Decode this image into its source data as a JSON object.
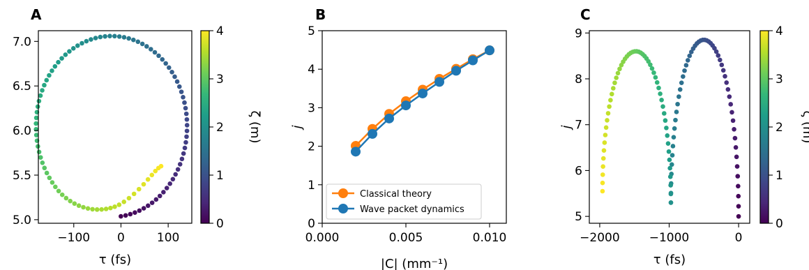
{
  "colorscale": [
    "#440154",
    "#482878",
    "#3e4989",
    "#31688e",
    "#26828e",
    "#1f9e89",
    "#35b779",
    "#6ece58",
    "#b5de2b",
    "#fde725"
  ],
  "series_colors": {
    "classical": "#ff7f0e",
    "wave": "#1f77b4"
  },
  "chart_data": [
    {
      "type": "scatter",
      "panel": "A",
      "xlabel": "τ (fs)",
      "ylabel": "",
      "xlim": [
        -175,
        150
      ],
      "ylim": [
        4.96,
        7.12
      ],
      "xticks": [
        -100,
        0,
        100
      ],
      "xtick_labels": [
        "−100",
        "0",
        "100"
      ],
      "yticks": [
        5.0,
        5.5,
        6.0,
        6.5,
        7.0
      ],
      "ytick_labels": [
        "5.0",
        "5.5",
        "6.0",
        "6.5",
        "7.0"
      ],
      "curve": {
        "form": "ellipse-spiral",
        "center": [
          -20,
          6.05
        ],
        "radius_x": 160,
        "radius_y_top": 1.01,
        "radius_y_bottom": 1.02,
        "start": [
          0,
          5.0
        ],
        "end": [
          85,
          5.6
        ],
        "points": 110
      },
      "colorbar": {
        "label": "ζ (m)",
        "range": [
          0,
          4
        ],
        "ticks": [
          0,
          1,
          2,
          3,
          4
        ],
        "tick_labels": [
          "0",
          "1",
          "2",
          "3",
          "4"
        ]
      },
      "grid": false
    },
    {
      "type": "line",
      "panel": "B",
      "xlabel": "|C| (mm⁻¹)",
      "ylabel": "j",
      "xlim": [
        0.0,
        0.011
      ],
      "ylim": [
        0,
        5
      ],
      "xticks": [
        0.0,
        0.005,
        0.01
      ],
      "xtick_labels": [
        "0.000",
        "0.005",
        "0.010"
      ],
      "yticks": [
        0,
        1,
        2,
        3,
        4,
        5
      ],
      "ytick_labels": [
        "0",
        "1",
        "2",
        "3",
        "4",
        "5"
      ],
      "x": [
        0.002,
        0.003,
        0.004,
        0.005,
        0.006,
        0.007,
        0.008,
        0.009,
        0.01
      ],
      "series": [
        {
          "name": "Classical theory",
          "values": [
            2.01,
            2.45,
            2.84,
            3.17,
            3.47,
            3.75,
            4.01,
            4.26,
            4.49
          ]
        },
        {
          "name": "Wave packet dynamics",
          "values": [
            1.86,
            2.32,
            2.72,
            3.06,
            3.37,
            3.67,
            3.96,
            4.23,
            4.49
          ]
        }
      ],
      "legend": "lower-right",
      "grid": false
    },
    {
      "type": "scatter",
      "panel": "C",
      "xlabel": "τ (fs)",
      "ylabel": "j",
      "xlim": [
        -2150,
        160
      ],
      "ylim": [
        4.85,
        9.05
      ],
      "xticks": [
        -2000,
        -1000,
        0
      ],
      "xtick_labels": [
        "−2000",
        "−1000",
        "0"
      ],
      "yticks": [
        5,
        6,
        7,
        8,
        9
      ],
      "ytick_labels": [
        "5",
        "6",
        "7",
        "8",
        "9"
      ],
      "curve": {
        "form": "double-arch",
        "right_arch_peak": [
          -500,
          8.85
        ],
        "dip": [
          -975,
          5.3
        ],
        "left_arch_peak": [
          -1450,
          8.6
        ],
        "start": [
          0,
          5.0
        ],
        "end": [
          -1960,
          5.55
        ],
        "points": 110
      },
      "colorbar": {
        "label": "ζ (m)",
        "range": [
          0,
          4
        ],
        "ticks": [
          0,
          1,
          2,
          3,
          4
        ],
        "tick_labels": [
          "0",
          "1",
          "2",
          "3",
          "4"
        ]
      },
      "grid": false
    }
  ],
  "panel_labels": [
    "A",
    "B",
    "C"
  ],
  "legend_entries": [
    "Classical theory",
    "Wave packet dynamics"
  ]
}
